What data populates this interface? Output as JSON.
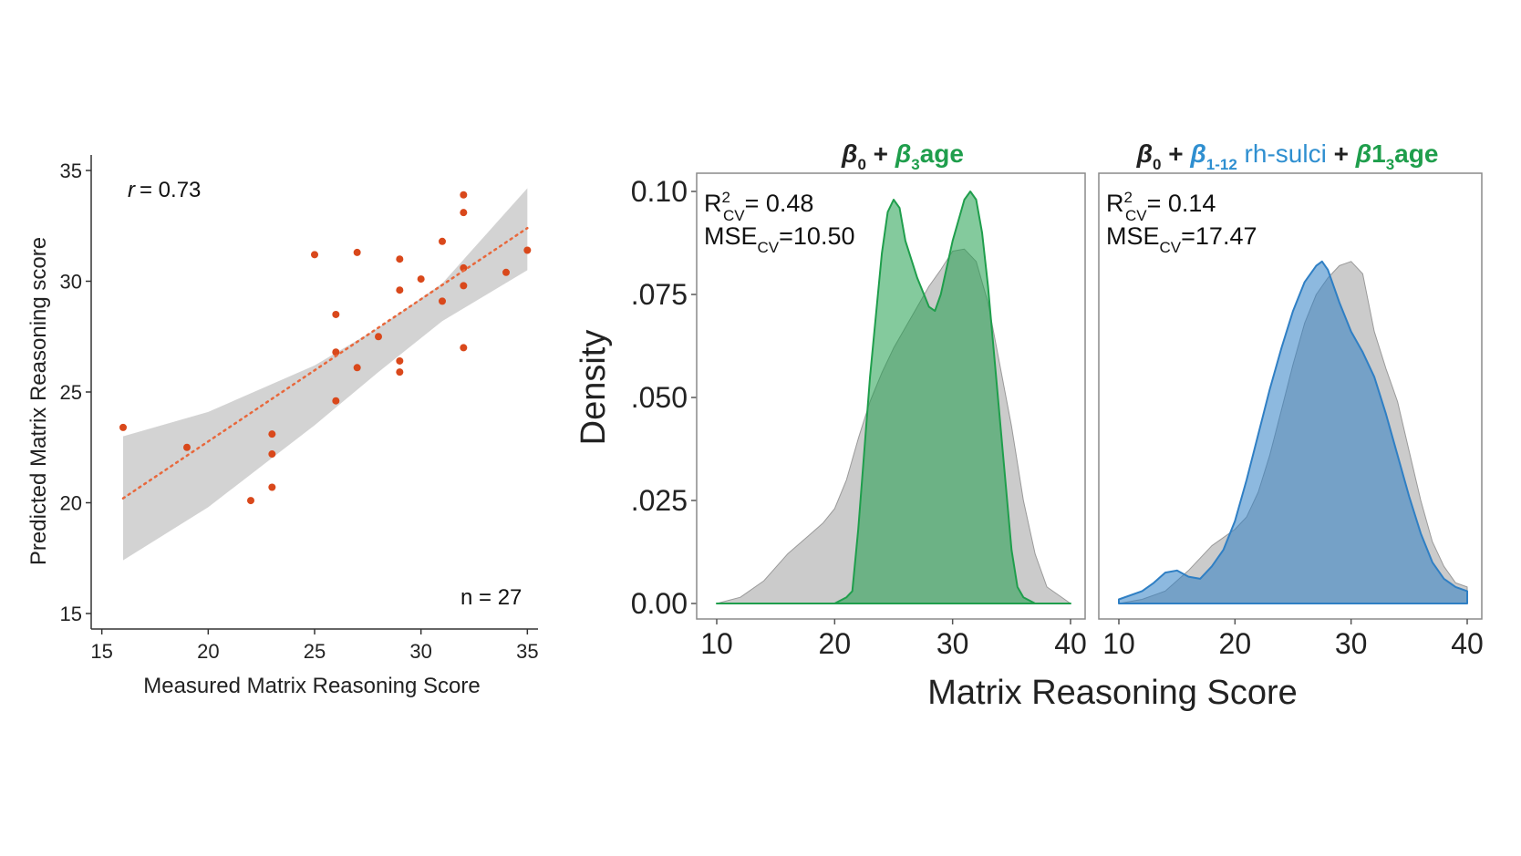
{
  "chart_data": [
    {
      "type": "scatter",
      "xlabel": "Measured Matrix Reasoning Score",
      "ylabel": "Predicted Matrix Reasoning score",
      "xlim": [
        15,
        35
      ],
      "ylim": [
        15,
        35
      ],
      "xticks": [
        15,
        20,
        25,
        30,
        35
      ],
      "yticks": [
        15,
        20,
        25,
        30,
        35
      ],
      "annotations": {
        "r_label": "r",
        "r_value": "= 0.73",
        "n": "n = 27"
      },
      "points": [
        [
          16,
          23.4
        ],
        [
          19,
          22.5
        ],
        [
          22,
          20.1
        ],
        [
          23,
          23.1
        ],
        [
          23,
          22.2
        ],
        [
          23,
          20.7
        ],
        [
          25,
          31.2
        ],
        [
          26,
          28.5
        ],
        [
          26,
          26.8
        ],
        [
          26,
          24.6
        ],
        [
          27,
          31.3
        ],
        [
          27,
          26.1
        ],
        [
          28,
          27.5
        ],
        [
          29,
          31.0
        ],
        [
          29,
          29.6
        ],
        [
          29,
          26.4
        ],
        [
          29,
          25.9
        ],
        [
          30,
          30.1
        ],
        [
          31,
          31.8
        ],
        [
          31,
          29.1
        ],
        [
          32,
          33.9
        ],
        [
          32,
          33.1
        ],
        [
          32,
          30.6
        ],
        [
          32,
          29.8
        ],
        [
          32,
          27.0
        ],
        [
          34,
          30.4
        ],
        [
          35,
          31.4
        ]
      ],
      "fit": {
        "x": [
          16,
          35
        ],
        "y": [
          20.2,
          32.4
        ]
      },
      "confidence_band": {
        "x": [
          16,
          20,
          25,
          28,
          31,
          35
        ],
        "lower": [
          17.4,
          19.8,
          23.5,
          25.9,
          28.2,
          30.5
        ],
        "upper": [
          23.0,
          24.1,
          26.2,
          27.9,
          29.9,
          34.2
        ]
      },
      "colors": {
        "points": "#d9481b",
        "fit": "#e8683c",
        "band": "#d3d3d3"
      }
    },
    {
      "type": "area",
      "xlabel": "Matrix Reasoning Score",
      "ylabel": "Density",
      "xlim": [
        10,
        40
      ],
      "ylim": [
        0,
        0.1
      ],
      "yticks": [
        0,
        0.025,
        0.05,
        0.075,
        0.1
      ],
      "ytick_labels": [
        "0.00",
        ".025",
        ".050",
        ".075",
        "0.10"
      ],
      "panels": [
        {
          "title": {
            "b": "β",
            "b_sub": "0",
            "plus": " + ",
            "b2": "β",
            "b2_sub": "3",
            "tail": "age"
          },
          "metrics": {
            "r2": "R",
            "r2_sup": "2",
            "r2_sub": "CV",
            "r2_value": "= 0.48",
            "mse": "MSE",
            "mse_sub": "CV",
            "mse_value": "=10.50"
          },
          "xticks": [
            10,
            20,
            30,
            40
          ],
          "series": [
            {
              "name": "measured",
              "color": "#a9a9a9",
              "x": [
                10,
                12,
                14,
                16,
                18,
                19,
                20,
                21,
                22,
                23,
                24,
                25,
                26,
                27,
                28,
                29,
                30,
                31,
                32,
                33,
                34,
                35,
                36,
                37,
                38,
                40
              ],
              "y": [
                0.0,
                0.0015,
                0.0055,
                0.012,
                0.017,
                0.0195,
                0.023,
                0.03,
                0.04,
                0.049,
                0.056,
                0.062,
                0.067,
                0.072,
                0.077,
                0.081,
                0.0855,
                0.086,
                0.083,
                0.073,
                0.058,
                0.043,
                0.025,
                0.012,
                0.004,
                0.0
              ]
            },
            {
              "name": "predicted",
              "color": "#1f9e4c",
              "x": [
                10,
                20,
                21,
                21.5,
                22,
                23,
                24,
                24.5,
                25,
                25.5,
                26,
                27,
                28,
                28.5,
                29,
                30,
                31,
                31.5,
                32,
                32.5,
                33,
                34,
                35,
                35.5,
                36,
                37,
                40
              ],
              "y": [
                0.0,
                0.0,
                0.0015,
                0.003,
                0.018,
                0.055,
                0.085,
                0.095,
                0.098,
                0.096,
                0.088,
                0.079,
                0.072,
                0.071,
                0.075,
                0.088,
                0.098,
                0.1,
                0.098,
                0.09,
                0.077,
                0.045,
                0.013,
                0.004,
                0.0015,
                0.0,
                0.0
              ]
            }
          ]
        },
        {
          "title": {
            "b": "β",
            "b_sub": "0",
            "plus": " + ",
            "b2": "β",
            "b2_sub": "1-12",
            "mid": " rh-sulci",
            "plus2": " + ",
            "b3": "β",
            "tail": "1",
            "tail_sub": "3",
            "tail2": "age"
          },
          "metrics": {
            "r2": "R",
            "r2_sup": "2",
            "r2_sub": "CV",
            "r2_value": "= 0.14",
            "mse": "MSE",
            "mse_sub": "CV",
            "mse_value": "=17.47"
          },
          "xticks": [
            10,
            20,
            30,
            40
          ],
          "series": [
            {
              "name": "measured",
              "color": "#a9a9a9",
              "x": [
                10,
                12,
                14,
                16,
                17,
                18,
                19,
                20,
                21,
                22,
                23,
                24,
                25,
                26,
                27,
                28,
                29,
                30,
                31,
                32,
                33,
                34,
                35,
                36,
                37,
                38,
                39,
                40
              ],
              "y": [
                0.0,
                0.001,
                0.003,
                0.008,
                0.011,
                0.014,
                0.016,
                0.018,
                0.021,
                0.027,
                0.036,
                0.047,
                0.058,
                0.068,
                0.075,
                0.079,
                0.082,
                0.083,
                0.08,
                0.066,
                0.057,
                0.049,
                0.037,
                0.025,
                0.015,
                0.009,
                0.005,
                0.004
              ]
            },
            {
              "name": "predicted",
              "color": "#2f7fc4",
              "x": [
                10,
                12,
                13,
                14,
                15,
                16,
                17,
                18,
                19,
                20,
                21,
                22,
                23,
                24,
                25,
                26,
                27,
                27.5,
                28,
                29,
                30,
                31,
                32,
                33,
                34,
                35,
                36,
                37,
                38,
                39,
                40
              ],
              "y": [
                0.001,
                0.003,
                0.005,
                0.0075,
                0.008,
                0.0065,
                0.006,
                0.009,
                0.013,
                0.02,
                0.03,
                0.041,
                0.052,
                0.062,
                0.071,
                0.078,
                0.082,
                0.083,
                0.081,
                0.073,
                0.066,
                0.061,
                0.055,
                0.046,
                0.036,
                0.026,
                0.017,
                0.01,
                0.006,
                0.004,
                0.003
              ]
            }
          ]
        }
      ]
    }
  ]
}
